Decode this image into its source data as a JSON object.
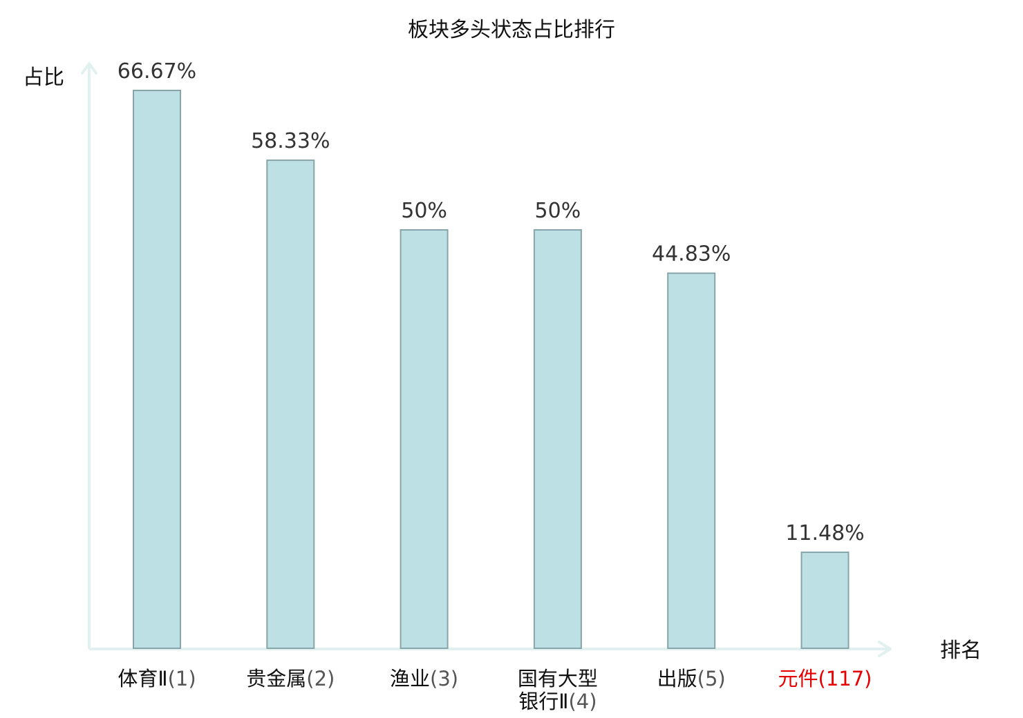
{
  "chart_data": {
    "type": "bar",
    "title": "板块多头状态占比排行",
    "ylabel": "占比",
    "xlabel": "排名",
    "ylim": [
      0,
      70
    ],
    "grid": false,
    "categories": [
      {
        "lines": [
          {
            "name": "体育Ⅱ",
            "rank": "(1)"
          }
        ],
        "highlight": false
      },
      {
        "lines": [
          {
            "name": "贵金属",
            "rank": "(2)"
          }
        ],
        "highlight": false
      },
      {
        "lines": [
          {
            "name": "渔业",
            "rank": "(3)"
          }
        ],
        "highlight": false
      },
      {
        "lines": [
          {
            "name": "国有大型",
            "rank": ""
          },
          {
            "name": "银行Ⅱ",
            "rank": "(4)"
          }
        ],
        "highlight": false
      },
      {
        "lines": [
          {
            "name": "出版",
            "rank": "(5)"
          }
        ],
        "highlight": false
      },
      {
        "lines": [
          {
            "name": "元件",
            "rank": "(117)"
          }
        ],
        "highlight": true
      }
    ],
    "values": [
      66.67,
      58.33,
      50,
      50,
      44.83,
      11.48
    ],
    "value_labels": [
      "66.67%",
      "58.33%",
      "50%",
      "50%",
      "44.83%",
      "11.48%"
    ],
    "colors": {
      "bar_fill": "#bce0e3",
      "bar_stroke": "#87a5a8",
      "axis": "#e0f1ef",
      "highlight_text": "#e60000"
    }
  }
}
